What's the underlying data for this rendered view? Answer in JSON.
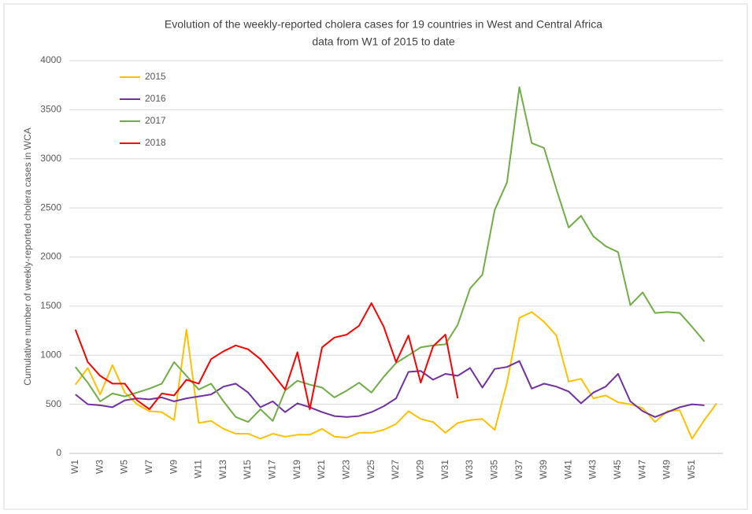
{
  "chart_data": {
    "type": "line",
    "title": "Evolution of the weekly-reported cholera cases for 19 countries in West and Central Africa",
    "subtitle": "data from W1 of 2015 to date",
    "y_label": "Cumulative number of weekly-reported cholera cases in WCA",
    "categories": [
      "W1",
      null,
      "W3",
      null,
      "W5",
      null,
      "W7",
      null,
      "W9",
      null,
      "W11",
      null,
      "W13",
      null,
      "W15",
      null,
      "W17",
      null,
      "W19",
      null,
      "W21",
      null,
      "W23",
      null,
      "W25",
      null,
      "W27",
      null,
      "W29",
      null,
      "W31",
      null,
      "W33",
      null,
      "W35",
      null,
      "W37",
      null,
      "W39",
      null,
      "W41",
      null,
      "W43",
      null,
      "W45",
      null,
      "W47",
      null,
      "W49",
      null,
      "W51",
      null,
      null
    ],
    "series": [
      {
        "name": "2015",
        "color": "#ffc000",
        "values": [
          700,
          870,
          600,
          900,
          620,
          500,
          430,
          420,
          340,
          1260,
          310,
          330,
          250,
          200,
          200,
          150,
          200,
          170,
          190,
          190,
          250,
          170,
          160,
          210,
          210,
          240,
          300,
          430,
          350,
          320,
          210,
          310,
          340,
          350,
          240,
          720,
          1380,
          1440,
          1340,
          1200,
          730,
          760,
          560,
          590,
          520,
          500,
          460,
          320,
          430,
          440,
          150,
          340,
          510
        ]
      },
      {
        "name": "2016",
        "color": "#7030a0",
        "values": [
          600,
          500,
          490,
          470,
          540,
          560,
          550,
          570,
          530,
          560,
          580,
          600,
          680,
          710,
          620,
          470,
          530,
          420,
          510,
          470,
          420,
          380,
          370,
          380,
          420,
          480,
          560,
          830,
          840,
          750,
          810,
          790,
          870,
          670,
          860,
          880,
          940,
          660,
          710,
          680,
          630,
          510,
          620,
          680,
          810,
          530,
          430,
          370,
          420,
          470,
          500,
          490,
          null
        ]
      },
      {
        "name": "2017",
        "color": "#70ad47",
        "values": [
          880,
          720,
          530,
          610,
          580,
          620,
          660,
          710,
          930,
          790,
          650,
          710,
          530,
          370,
          320,
          450,
          330,
          640,
          740,
          700,
          670,
          570,
          640,
          720,
          620,
          780,
          920,
          1000,
          1080,
          1100,
          1110,
          1310,
          1680,
          1820,
          2480,
          2760,
          3730,
          3160,
          3110,
          2690,
          2300,
          2420,
          2210,
          2110,
          2050,
          1510,
          1640,
          1430,
          1440,
          1430,
          1290,
          1140,
          null
        ]
      },
      {
        "name": "2018",
        "color": "#ff0000",
        "values": [
          1260,
          930,
          790,
          710,
          710,
          540,
          450,
          610,
          590,
          750,
          710,
          960,
          1040,
          1100,
          1060,
          960,
          810,
          650,
          1030,
          450,
          1080,
          1180,
          1210,
          1300,
          1530,
          1290,
          930,
          1200,
          720,
          1090,
          1210,
          560,
          null,
          null,
          null,
          null,
          null,
          null,
          null,
          null,
          null,
          null,
          null,
          null,
          null,
          null,
          null,
          null,
          null,
          null,
          null,
          null,
          null
        ]
      }
    ],
    "ylim": [
      0,
      4000
    ],
    "yticks": [
      0,
      500,
      1000,
      1500,
      2000,
      2500,
      3000,
      3500,
      4000
    ],
    "grid": true,
    "legend": "top-left"
  }
}
